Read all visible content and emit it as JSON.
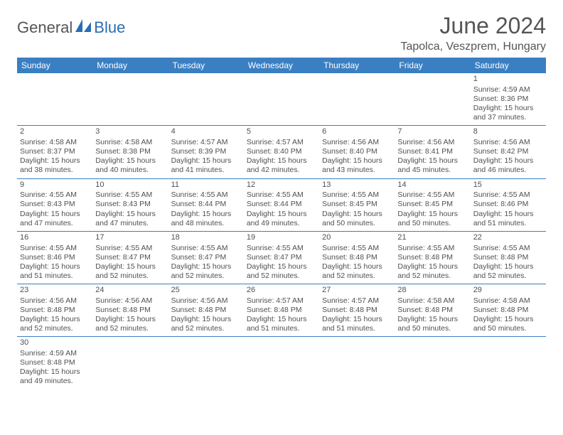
{
  "brand": {
    "part1": "General",
    "part2": "Blue"
  },
  "colors": {
    "accent": "#3a7fc2",
    "brand_blue": "#2a6db5",
    "text": "#505050",
    "bg": "#ffffff"
  },
  "title": "June 2024",
  "location": "Tapolca, Veszprem, Hungary",
  "day_headers": [
    "Sunday",
    "Monday",
    "Tuesday",
    "Wednesday",
    "Thursday",
    "Friday",
    "Saturday"
  ],
  "weeks": [
    [
      null,
      null,
      null,
      null,
      null,
      null,
      {
        "n": "1",
        "sr": "Sunrise: 4:59 AM",
        "ss": "Sunset: 8:36 PM",
        "d1": "Daylight: 15 hours",
        "d2": "and 37 minutes."
      }
    ],
    [
      {
        "n": "2",
        "sr": "Sunrise: 4:58 AM",
        "ss": "Sunset: 8:37 PM",
        "d1": "Daylight: 15 hours",
        "d2": "and 38 minutes."
      },
      {
        "n": "3",
        "sr": "Sunrise: 4:58 AM",
        "ss": "Sunset: 8:38 PM",
        "d1": "Daylight: 15 hours",
        "d2": "and 40 minutes."
      },
      {
        "n": "4",
        "sr": "Sunrise: 4:57 AM",
        "ss": "Sunset: 8:39 PM",
        "d1": "Daylight: 15 hours",
        "d2": "and 41 minutes."
      },
      {
        "n": "5",
        "sr": "Sunrise: 4:57 AM",
        "ss": "Sunset: 8:40 PM",
        "d1": "Daylight: 15 hours",
        "d2": "and 42 minutes."
      },
      {
        "n": "6",
        "sr": "Sunrise: 4:56 AM",
        "ss": "Sunset: 8:40 PM",
        "d1": "Daylight: 15 hours",
        "d2": "and 43 minutes."
      },
      {
        "n": "7",
        "sr": "Sunrise: 4:56 AM",
        "ss": "Sunset: 8:41 PM",
        "d1": "Daylight: 15 hours",
        "d2": "and 45 minutes."
      },
      {
        "n": "8",
        "sr": "Sunrise: 4:56 AM",
        "ss": "Sunset: 8:42 PM",
        "d1": "Daylight: 15 hours",
        "d2": "and 46 minutes."
      }
    ],
    [
      {
        "n": "9",
        "sr": "Sunrise: 4:55 AM",
        "ss": "Sunset: 8:43 PM",
        "d1": "Daylight: 15 hours",
        "d2": "and 47 minutes."
      },
      {
        "n": "10",
        "sr": "Sunrise: 4:55 AM",
        "ss": "Sunset: 8:43 PM",
        "d1": "Daylight: 15 hours",
        "d2": "and 47 minutes."
      },
      {
        "n": "11",
        "sr": "Sunrise: 4:55 AM",
        "ss": "Sunset: 8:44 PM",
        "d1": "Daylight: 15 hours",
        "d2": "and 48 minutes."
      },
      {
        "n": "12",
        "sr": "Sunrise: 4:55 AM",
        "ss": "Sunset: 8:44 PM",
        "d1": "Daylight: 15 hours",
        "d2": "and 49 minutes."
      },
      {
        "n": "13",
        "sr": "Sunrise: 4:55 AM",
        "ss": "Sunset: 8:45 PM",
        "d1": "Daylight: 15 hours",
        "d2": "and 50 minutes."
      },
      {
        "n": "14",
        "sr": "Sunrise: 4:55 AM",
        "ss": "Sunset: 8:45 PM",
        "d1": "Daylight: 15 hours",
        "d2": "and 50 minutes."
      },
      {
        "n": "15",
        "sr": "Sunrise: 4:55 AM",
        "ss": "Sunset: 8:46 PM",
        "d1": "Daylight: 15 hours",
        "d2": "and 51 minutes."
      }
    ],
    [
      {
        "n": "16",
        "sr": "Sunrise: 4:55 AM",
        "ss": "Sunset: 8:46 PM",
        "d1": "Daylight: 15 hours",
        "d2": "and 51 minutes."
      },
      {
        "n": "17",
        "sr": "Sunrise: 4:55 AM",
        "ss": "Sunset: 8:47 PM",
        "d1": "Daylight: 15 hours",
        "d2": "and 52 minutes."
      },
      {
        "n": "18",
        "sr": "Sunrise: 4:55 AM",
        "ss": "Sunset: 8:47 PM",
        "d1": "Daylight: 15 hours",
        "d2": "and 52 minutes."
      },
      {
        "n": "19",
        "sr": "Sunrise: 4:55 AM",
        "ss": "Sunset: 8:47 PM",
        "d1": "Daylight: 15 hours",
        "d2": "and 52 minutes."
      },
      {
        "n": "20",
        "sr": "Sunrise: 4:55 AM",
        "ss": "Sunset: 8:48 PM",
        "d1": "Daylight: 15 hours",
        "d2": "and 52 minutes."
      },
      {
        "n": "21",
        "sr": "Sunrise: 4:55 AM",
        "ss": "Sunset: 8:48 PM",
        "d1": "Daylight: 15 hours",
        "d2": "and 52 minutes."
      },
      {
        "n": "22",
        "sr": "Sunrise: 4:55 AM",
        "ss": "Sunset: 8:48 PM",
        "d1": "Daylight: 15 hours",
        "d2": "and 52 minutes."
      }
    ],
    [
      {
        "n": "23",
        "sr": "Sunrise: 4:56 AM",
        "ss": "Sunset: 8:48 PM",
        "d1": "Daylight: 15 hours",
        "d2": "and 52 minutes."
      },
      {
        "n": "24",
        "sr": "Sunrise: 4:56 AM",
        "ss": "Sunset: 8:48 PM",
        "d1": "Daylight: 15 hours",
        "d2": "and 52 minutes."
      },
      {
        "n": "25",
        "sr": "Sunrise: 4:56 AM",
        "ss": "Sunset: 8:48 PM",
        "d1": "Daylight: 15 hours",
        "d2": "and 52 minutes."
      },
      {
        "n": "26",
        "sr": "Sunrise: 4:57 AM",
        "ss": "Sunset: 8:48 PM",
        "d1": "Daylight: 15 hours",
        "d2": "and 51 minutes."
      },
      {
        "n": "27",
        "sr": "Sunrise: 4:57 AM",
        "ss": "Sunset: 8:48 PM",
        "d1": "Daylight: 15 hours",
        "d2": "and 51 minutes."
      },
      {
        "n": "28",
        "sr": "Sunrise: 4:58 AM",
        "ss": "Sunset: 8:48 PM",
        "d1": "Daylight: 15 hours",
        "d2": "and 50 minutes."
      },
      {
        "n": "29",
        "sr": "Sunrise: 4:58 AM",
        "ss": "Sunset: 8:48 PM",
        "d1": "Daylight: 15 hours",
        "d2": "and 50 minutes."
      }
    ],
    [
      {
        "n": "30",
        "sr": "Sunrise: 4:59 AM",
        "ss": "Sunset: 8:48 PM",
        "d1": "Daylight: 15 hours",
        "d2": "and 49 minutes."
      },
      null,
      null,
      null,
      null,
      null,
      null
    ]
  ]
}
